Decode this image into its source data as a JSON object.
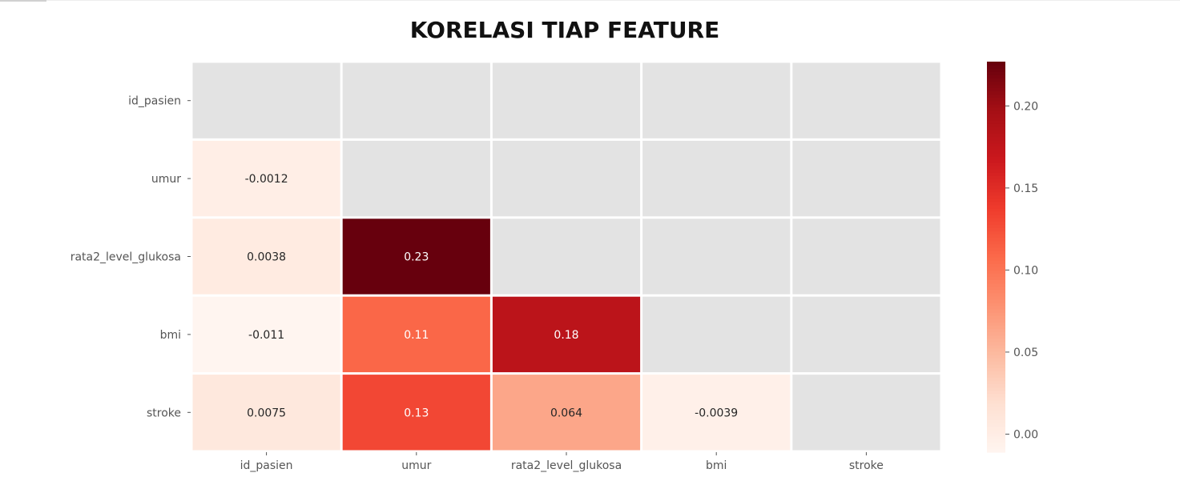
{
  "chart_data": {
    "type": "heatmap",
    "title": "KORELASI TIAP FEATURE",
    "rows": [
      "id_pasien",
      "umur",
      "rata2_level_glukosa",
      "bmi",
      "stroke"
    ],
    "cols": [
      "id_pasien",
      "umur",
      "rata2_level_glukosa",
      "bmi",
      "stroke"
    ],
    "mask": "upper triangle including diagonal (shown gray)",
    "values": [
      [
        null,
        null,
        null,
        null,
        null
      ],
      [
        -0.0012,
        null,
        null,
        null,
        null
      ],
      [
        0.0038,
        0.23,
        null,
        null,
        null
      ],
      [
        -0.011,
        0.11,
        0.18,
        null,
        null
      ],
      [
        0.0075,
        0.13,
        0.064,
        -0.0039,
        null
      ]
    ],
    "labels": [
      [
        null,
        null,
        null,
        null,
        null
      ],
      [
        "-0.0012",
        null,
        null,
        null,
        null
      ],
      [
        "0.0038",
        "0.23",
        null,
        null,
        null
      ],
      [
        "-0.011",
        "0.11",
        "0.18",
        null,
        null
      ],
      [
        "0.0075",
        "0.13",
        "0.064",
        "-0.0039",
        null
      ]
    ],
    "colormap": "Reds",
    "colorbar": {
      "range": [
        -0.011,
        0.227
      ],
      "ticks": [
        0.0,
        0.05,
        0.1,
        0.15,
        0.2
      ],
      "tick_labels": [
        "0.00",
        "0.05",
        "0.10",
        "0.15",
        "0.20"
      ]
    },
    "colors": {
      "masked": "#e3e3e3",
      "cell_border": "#ffffff",
      "dark_text": "#262626",
      "light_text": "#ffffff",
      "axis_text": "#555555"
    }
  }
}
